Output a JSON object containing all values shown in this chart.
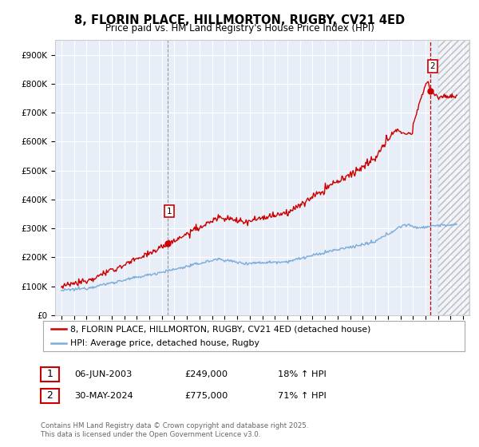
{
  "title": "8, FLORIN PLACE, HILLMORTON, RUGBY, CV21 4ED",
  "subtitle": "Price paid vs. HM Land Registry's House Price Index (HPI)",
  "legend_line1": "8, FLORIN PLACE, HILLMORTON, RUGBY, CV21 4ED (detached house)",
  "legend_line2": "HPI: Average price, detached house, Rugby",
  "annotation1_date": "06-JUN-2003",
  "annotation1_price": "£249,000",
  "annotation1_hpi": "18% ↑ HPI",
  "annotation2_date": "30-MAY-2024",
  "annotation2_price": "£775,000",
  "annotation2_hpi": "71% ↑ HPI",
  "footer": "Contains HM Land Registry data © Crown copyright and database right 2025.\nThis data is licensed under the Open Government Licence v3.0.",
  "property_color": "#cc0000",
  "hpi_color": "#7aaddb",
  "background_chart": "#e8eef8",
  "background_fig": "#ffffff",
  "grid_color": "#ffffff",
  "ylim": [
    0,
    950000
  ],
  "xlim_start": 1994.5,
  "xlim_end": 2027.5,
  "purchase1_year": 2003.44,
  "purchase1_price": 249000,
  "purchase2_year": 2024.41,
  "purchase2_price": 775000,
  "hatch_start": 2025.0
}
